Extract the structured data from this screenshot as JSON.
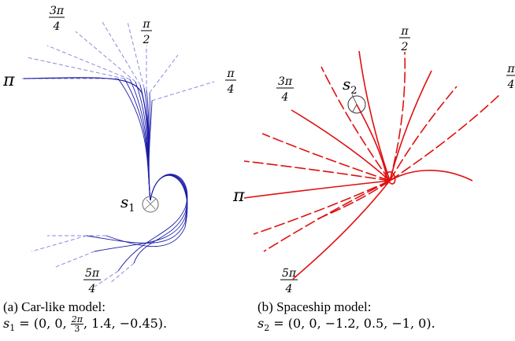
{
  "panel_a": {
    "start_label": "s",
    "start_sub": "1",
    "angle_labels": [
      {
        "id": "a-3pi4",
        "num": "3π",
        "den": "4"
      },
      {
        "id": "a-pi2",
        "num": "π",
        "den": "2"
      },
      {
        "id": "a-pi",
        "text": "π"
      },
      {
        "id": "a-pi4",
        "num": "π",
        "den": "4"
      },
      {
        "id": "a-5pi4",
        "num": "5π",
        "den": "4"
      }
    ],
    "caption_title": "(a) Car-like model:",
    "caption_math_prefix": "s",
    "caption_math_sub": "1",
    "caption_math_eq": " = (0, 0, ",
    "caption_frac_num": "2π",
    "caption_frac_den": "3",
    "caption_math_rest": ", 1.4, −0.45).",
    "colors": {
      "curve": "#1a1aa8",
      "dash": "#8a8ae0"
    }
  },
  "panel_b": {
    "start_label": "s",
    "start_sub": "2",
    "angle_labels": [
      {
        "id": "b-3pi4",
        "num": "3π",
        "den": "4"
      },
      {
        "id": "b-pi2",
        "num": "π",
        "den": "2"
      },
      {
        "id": "b-pi",
        "text": "π"
      },
      {
        "id": "b-pi4",
        "num": "π",
        "den": "4"
      },
      {
        "id": "b-5pi4",
        "num": "5π",
        "den": "4"
      }
    ],
    "caption_title": "(b) Spaceship model:",
    "caption_math_prefix": "s",
    "caption_math_sub": "2",
    "caption_math_eq": " = (0, 0, −1.2, 0.5, −1, 0).",
    "colors": {
      "curve": "#e01010",
      "dash": "#e01010"
    }
  }
}
